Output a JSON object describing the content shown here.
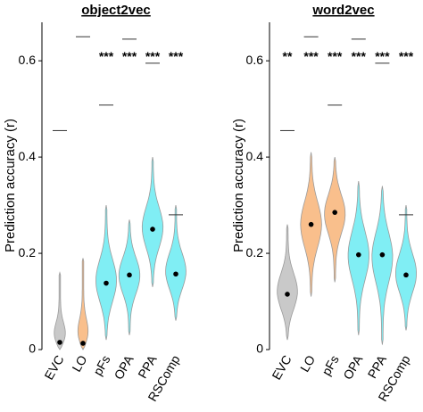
{
  "chart_data": [
    {
      "type": "violin",
      "title": "object2vec",
      "ylabel": "Prediction accuracy (r)",
      "categories": [
        "EVC",
        "LO",
        "pFs",
        "OPA",
        "PPA",
        "RSComp"
      ],
      "colors": [
        "#c9c9c9",
        "#f9bf8c",
        "#80eef4",
        "#80eef4",
        "#80eef4",
        "#80eef4"
      ],
      "colors_by_category": true,
      "medians": [
        0.015,
        0.013,
        0.138,
        0.155,
        0.25,
        0.157
      ],
      "mins": [
        0.0,
        0.0,
        0.02,
        0.03,
        0.13,
        0.06
      ],
      "maxs": [
        0.16,
        0.19,
        0.3,
        0.27,
        0.4,
        0.3
      ],
      "noise_ceiling": [
        0.455,
        0.65,
        0.508,
        0.645,
        0.595,
        0.28
      ],
      "significance": [
        null,
        null,
        "***",
        "***",
        "***",
        "***"
      ],
      "ylim": [
        0,
        0.68
      ],
      "yticks": [
        0,
        0.2,
        0.4,
        0.6
      ]
    },
    {
      "type": "violin",
      "title": "word2vec",
      "ylabel": "Prediction accuracy (r)",
      "categories": [
        "EVC",
        "LO",
        "pFs",
        "OPA",
        "PPA",
        "RSComp"
      ],
      "colors": [
        "#c9c9c9",
        "#f9bf8c",
        "#f9bf8c",
        "#80eef4",
        "#80eef4",
        "#80eef4"
      ],
      "colors_by_category": true,
      "medians": [
        0.115,
        0.26,
        0.285,
        0.197,
        0.197,
        0.155
      ],
      "mins": [
        0.02,
        0.11,
        0.14,
        0.03,
        0.01,
        0.04
      ],
      "maxs": [
        0.26,
        0.41,
        0.4,
        0.35,
        0.34,
        0.3
      ],
      "noise_ceiling": [
        0.455,
        0.65,
        0.508,
        0.645,
        0.595,
        0.28
      ],
      "significance": [
        "**",
        "***",
        "***",
        "***",
        "***",
        "***"
      ],
      "ylim": [
        0,
        0.68
      ],
      "yticks": [
        0,
        0.2,
        0.4,
        0.6
      ]
    }
  ]
}
